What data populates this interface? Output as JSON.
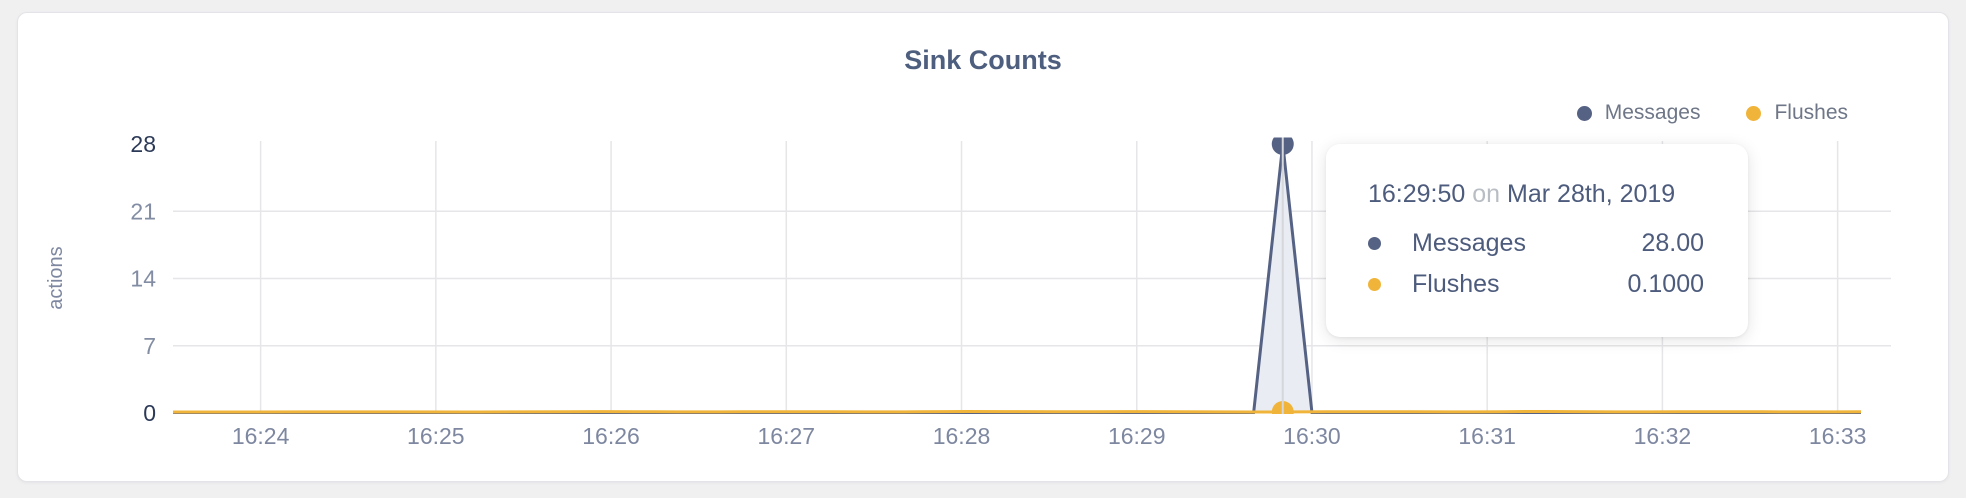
{
  "colors": {
    "page_bg": "#f0f0f1",
    "card_bg": "#ffffff",
    "card_border": "#e3e4e8",
    "title": "#4e5e7e",
    "axis_label": "#7d87a0",
    "tick_minor": "#828da3",
    "tick_major": "#2c3a58",
    "grid": "#e6e6e9",
    "hover_line": "#d6d7da",
    "messages": "#566284",
    "messages_fill": "#e9ecf3",
    "flushes": "#f0b43a",
    "legend_text": "#6e7687",
    "tooltip_text": "#4d5b7c",
    "tooltip_muted": "#b9bdc4"
  },
  "tooltip": {
    "time": "16:29:50",
    "connector": "on",
    "date": "Mar 28th, 2019",
    "rows": [
      {
        "series": "Messages",
        "value": "28.00"
      },
      {
        "series": "Flushes",
        "value": "0.1000"
      }
    ]
  },
  "chart_data": {
    "type": "line",
    "title": "Sink Counts",
    "xlabel": "",
    "ylabel": "actions",
    "ylim": [
      0,
      28
    ],
    "y_ticks": [
      28,
      21,
      14,
      7,
      0
    ],
    "x_ticks": [
      "16:24",
      "16:25",
      "16:26",
      "16:27",
      "16:28",
      "16:29",
      "16:30",
      "16:31",
      "16:32",
      "16:33"
    ],
    "x_domain": [
      "16:23:30",
      "16:33:08"
    ],
    "grid": true,
    "legend_position": "top-right",
    "series": [
      {
        "name": "Messages",
        "color": "#566284",
        "points": [
          [
            "16:23:30",
            0
          ],
          [
            "16:24:00",
            0
          ],
          [
            "16:25:00",
            0
          ],
          [
            "16:26:00",
            0
          ],
          [
            "16:27:00",
            0
          ],
          [
            "16:28:00",
            0
          ],
          [
            "16:29:00",
            0
          ],
          [
            "16:29:40",
            0
          ],
          [
            "16:29:50",
            28
          ],
          [
            "16:30:00",
            0
          ],
          [
            "16:31:00",
            0
          ],
          [
            "16:32:00",
            0
          ],
          [
            "16:33:08",
            0
          ]
        ]
      },
      {
        "name": "Flushes",
        "color": "#f0b43a",
        "points": [
          [
            "16:23:30",
            0.1
          ],
          [
            "16:24:00",
            0.1
          ],
          [
            "16:24:30",
            0.12
          ],
          [
            "16:25:00",
            0.1
          ],
          [
            "16:25:30",
            0.11
          ],
          [
            "16:26:00",
            0.16
          ],
          [
            "16:26:30",
            0.1
          ],
          [
            "16:27:00",
            0.14
          ],
          [
            "16:27:30",
            0.1
          ],
          [
            "16:28:00",
            0.18
          ],
          [
            "16:28:30",
            0.12
          ],
          [
            "16:29:00",
            0.16
          ],
          [
            "16:29:30",
            0.1
          ],
          [
            "16:29:50",
            0.1
          ],
          [
            "16:30:20",
            0.14
          ],
          [
            "16:30:50",
            0.1
          ],
          [
            "16:31:20",
            0.18
          ],
          [
            "16:31:50",
            0.1
          ],
          [
            "16:32:20",
            0.15
          ],
          [
            "16:32:50",
            0.1
          ],
          [
            "16:33:08",
            0.12
          ]
        ]
      }
    ],
    "hover": {
      "time": "16:29:50",
      "values": {
        "Messages": 28.0,
        "Flushes": 0.1
      }
    }
  }
}
